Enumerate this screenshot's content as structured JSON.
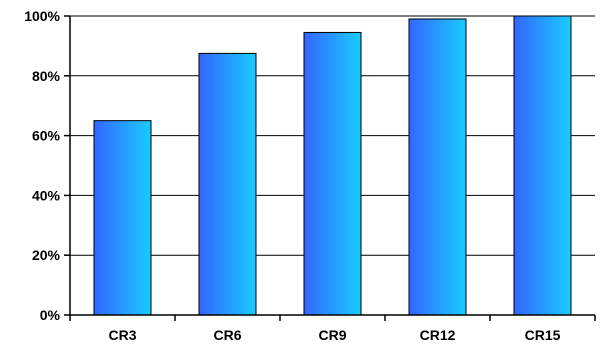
{
  "chart_data": {
    "type": "bar",
    "categories": [
      "CR3",
      "CR6",
      "CR9",
      "CR12",
      "CR15"
    ],
    "values": [
      65,
      87.5,
      94.5,
      99,
      100
    ],
    "y_tick_labels": [
      "0%",
      "20%",
      "40%",
      "60%",
      "80%",
      "100%"
    ],
    "ylim": [
      0,
      100
    ],
    "grid": true,
    "legend": "none",
    "title": "",
    "xlabel": "",
    "ylabel": "",
    "colors": {
      "bar_left": "#3366ff",
      "bar_right": "#19ccff",
      "bar_stroke": "#000000",
      "grid": "#000000",
      "axis": "#000000"
    }
  }
}
